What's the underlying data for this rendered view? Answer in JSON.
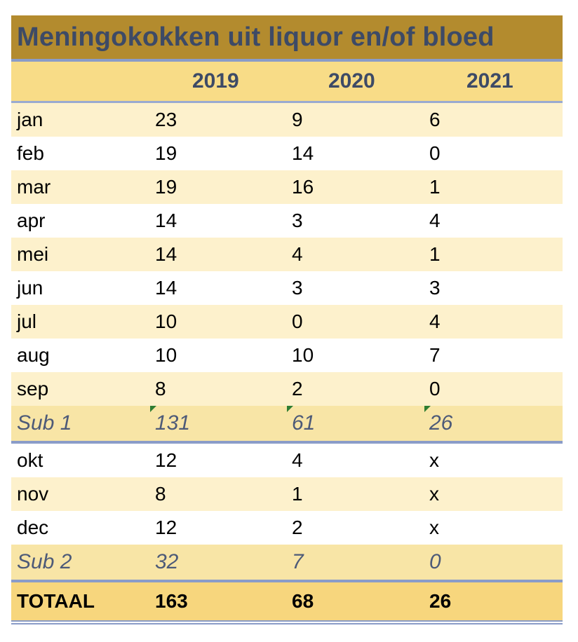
{
  "title": "Meningokokken uit liquor en/of bloed",
  "columns": [
    "2019",
    "2020",
    "2021"
  ],
  "rows_q1": [
    {
      "label": "jan",
      "values": [
        "23",
        "9",
        "6"
      ]
    },
    {
      "label": "feb",
      "values": [
        "19",
        "14",
        "0"
      ]
    },
    {
      "label": "mar",
      "values": [
        "19",
        "16",
        "1"
      ]
    },
    {
      "label": "apr",
      "values": [
        "14",
        "3",
        "4"
      ]
    },
    {
      "label": "mei",
      "values": [
        "14",
        "4",
        "1"
      ]
    },
    {
      "label": "jun",
      "values": [
        "14",
        "3",
        "3"
      ]
    },
    {
      "label": "jul",
      "values": [
        "10",
        "0",
        "4"
      ]
    },
    {
      "label": "aug",
      "values": [
        "10",
        "10",
        "7"
      ]
    },
    {
      "label": "sep",
      "values": [
        "8",
        "2",
        "0"
      ]
    }
  ],
  "sub1": {
    "label": "Sub 1",
    "values": [
      "131",
      "61",
      "26"
    ]
  },
  "rows_q2": [
    {
      "label": "okt",
      "values": [
        "12",
        "4",
        "x"
      ]
    },
    {
      "label": "nov",
      "values": [
        "8",
        "1",
        "x"
      ]
    },
    {
      "label": "dec",
      "values": [
        "12",
        "2",
        "x"
      ]
    }
  ],
  "sub2": {
    "label": "Sub 2",
    "values": [
      "32",
      "7",
      "0"
    ]
  },
  "total": {
    "label": "TOTAAL",
    "values": [
      "163",
      "68",
      "26"
    ]
  },
  "colors": {
    "title_bg": "#b38b2e",
    "header_bg": "#f8dc87",
    "row_light": "#fdf1cc",
    "sub_bg": "#f8e5a6",
    "total_bg": "#f7d67d",
    "rule": "#8a9cc8",
    "title_text": "#3d4a66"
  }
}
